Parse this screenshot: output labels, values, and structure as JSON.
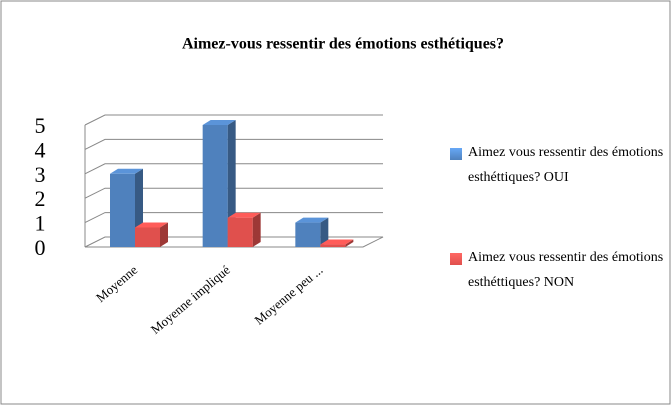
{
  "chart_data": {
    "type": "bar3d",
    "title": "Aimez-vous ressentir des émotions esthétiques?",
    "categories": [
      "Moyenne",
      "Moyenne impliqué",
      "Moyenne peu ..."
    ],
    "series": [
      {
        "name": "Aimez vous ressentir des émotions esthéttiques? OUI",
        "color": "#4f81bd",
        "values": [
          3,
          5,
          1
        ]
      },
      {
        "name": "Aimez vous ressentir des émotions esthéttiques? NON",
        "color": "#e0504d",
        "values": [
          0.8,
          1.2,
          0.1
        ]
      }
    ],
    "ylim": [
      0,
      5
    ],
    "yticks": [
      0,
      1,
      2,
      3,
      4,
      5
    ],
    "grid": true,
    "legend": "right"
  }
}
